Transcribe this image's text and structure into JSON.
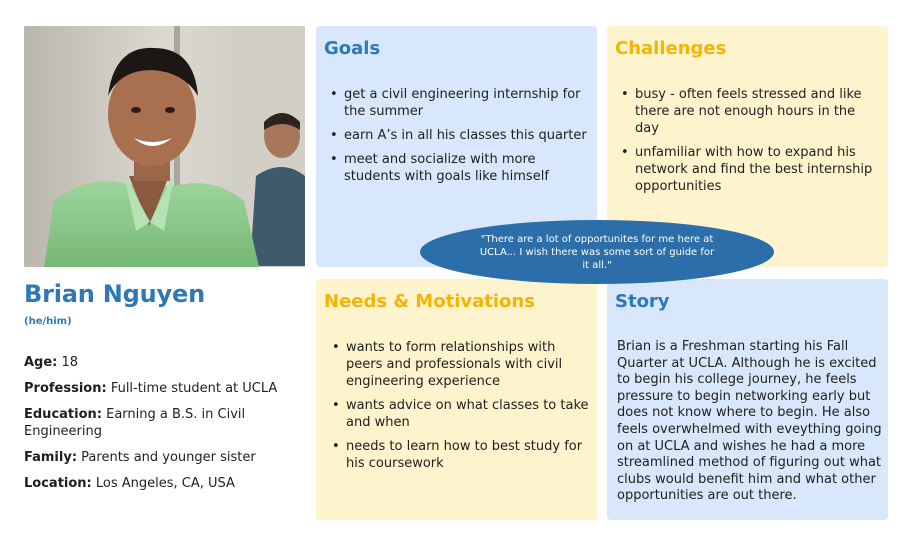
{
  "persona": {
    "name": "Brian Nguyen",
    "pronouns": "(he/him)",
    "details": [
      {
        "label": "Age:",
        "value": "18"
      },
      {
        "label": "Profession:",
        "value": "Full-time student at UCLA"
      },
      {
        "label": "Education:",
        "value": "Earning a B.S. in Civil Engineering"
      },
      {
        "label": "Family:",
        "value": "Parents and younger sister"
      },
      {
        "label": "Location:",
        "value": "Los Angeles, CA, USA"
      }
    ]
  },
  "goals": {
    "title": "Goals",
    "items": [
      "get a civil engineering internship for the summer",
      "earn A’s in all his classes this quarter",
      "meet and socialize with more students with goals like himself"
    ]
  },
  "challenges": {
    "title": "Challenges",
    "items": [
      "busy - often feels stressed and like there are not enough hours in the day",
      "unfamiliar with how to expand his network and find the best internship opportunities"
    ]
  },
  "needs": {
    "title": "Needs & Motivations",
    "items": [
      "wants to form relationships with peers and professionals with civil engineering experience",
      "wants advice on what classes to take and when",
      "needs to learn how to best study for his coursework"
    ]
  },
  "story": {
    "title": "Story",
    "text": "Brian is a Freshman starting his Fall Quarter at UCLA. Although he is excited to begin his college journey, he feels pressure to begin networking early but does not know where to begin. He also feels overwhelmed with eveything going on at UCLA and wishes he had a more streamlined method of figuring out what clubs would benefit him and what other opportunities are out there."
  },
  "quote": "\"There are a lot of opportunites for me here at UCLA... I wish there was some sort of guide for it all.\"",
  "colors": {
    "blue_heading": "#2d79b8",
    "yellow_heading": "#f5b400",
    "blue_card": "#d8e7fb",
    "yellow_card": "#fdf3cd",
    "quote_oval": "#2b6ea9"
  }
}
